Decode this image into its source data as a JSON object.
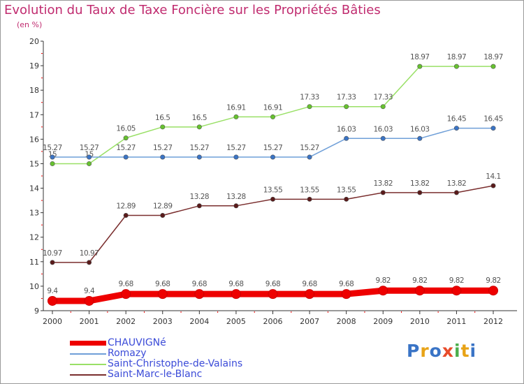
{
  "header": {
    "title": "Evolution du Taux de Taxe Foncière sur les Propriétés Bâties",
    "unit": "(en %)"
  },
  "logo_text": "Proxiti",
  "chart_data": {
    "type": "line",
    "title": "Evolution du Taux de Taxe Foncière sur les Propriétés Bâties",
    "ylabel": "(en %)",
    "xlabel": "",
    "x": [
      2000,
      2001,
      2002,
      2003,
      2004,
      2005,
      2006,
      2007,
      2008,
      2009,
      2010,
      2011,
      2012
    ],
    "ylim": [
      9,
      20
    ],
    "yticks": [
      9,
      10,
      11,
      12,
      13,
      14,
      15,
      16,
      17,
      18,
      19,
      20
    ],
    "grid": false,
    "legend_position": "bottom",
    "series": [
      {
        "name": "CHAUVIGNé",
        "color": "#ee0000",
        "point_color": "#ee0000",
        "values": [
          9.4,
          9.4,
          9.68,
          9.68,
          9.68,
          9.68,
          9.68,
          9.68,
          9.68,
          9.82,
          9.82,
          9.82,
          9.82
        ],
        "labels": [
          "9.4",
          "9.4",
          "9.68",
          "9.68",
          "9.68",
          "9.68",
          "9.68",
          "9.68",
          "9.68",
          "9.82",
          "9.82",
          "9.82",
          "9.82"
        ]
      },
      {
        "name": "Romazy",
        "color": "#6f9fd8",
        "point_color": "#3a74c6",
        "values": [
          15.27,
          15.27,
          15.27,
          15.27,
          15.27,
          15.27,
          15.27,
          15.27,
          16.03,
          16.03,
          16.03,
          16.45,
          16.45
        ],
        "labels": [
          "15.27",
          "15.27",
          "15.27",
          "15.27",
          "15.27",
          "15.27",
          "15.27",
          "15.27",
          "16.03",
          "16.03",
          "16.03",
          "16.45",
          "16.45"
        ]
      },
      {
        "name": "Saint-Christophe-de-Valains",
        "color": "#99e066",
        "point_color": "#66c22e",
        "values": [
          15,
          15,
          16.05,
          16.5,
          16.5,
          16.91,
          16.91,
          17.33,
          17.33,
          17.33,
          18.97,
          18.97,
          18.97
        ],
        "labels": [
          "15",
          "15",
          "16.05",
          "16.5",
          "16.5",
          "16.91",
          "16.91",
          "17.33",
          "17.33",
          "17.33",
          "18.97",
          "18.97",
          "18.97"
        ]
      },
      {
        "name": "Saint-Marc-le-Blanc",
        "color": "#7a2e2e",
        "point_color": "#5a1a1a",
        "values": [
          10.97,
          10.97,
          12.89,
          12.89,
          13.28,
          13.28,
          13.55,
          13.55,
          13.55,
          13.82,
          13.82,
          13.82,
          14.1
        ],
        "labels": [
          "10.97",
          "10.97",
          "12.89",
          "12.89",
          "13.28",
          "13.28",
          "13.55",
          "13.55",
          "13.55",
          "13.82",
          "13.82",
          "13.82",
          "14.1"
        ]
      }
    ]
  },
  "legend": {
    "items": [
      {
        "label": "CHAUVIGNé",
        "color": "#ee0000"
      },
      {
        "label": "Romazy",
        "color": "#6f9fd8"
      },
      {
        "label": "Saint-Christophe-de-Valains",
        "color": "#99e066"
      },
      {
        "label": "Saint-Marc-le-Blanc",
        "color": "#7a2e2e"
      }
    ]
  }
}
